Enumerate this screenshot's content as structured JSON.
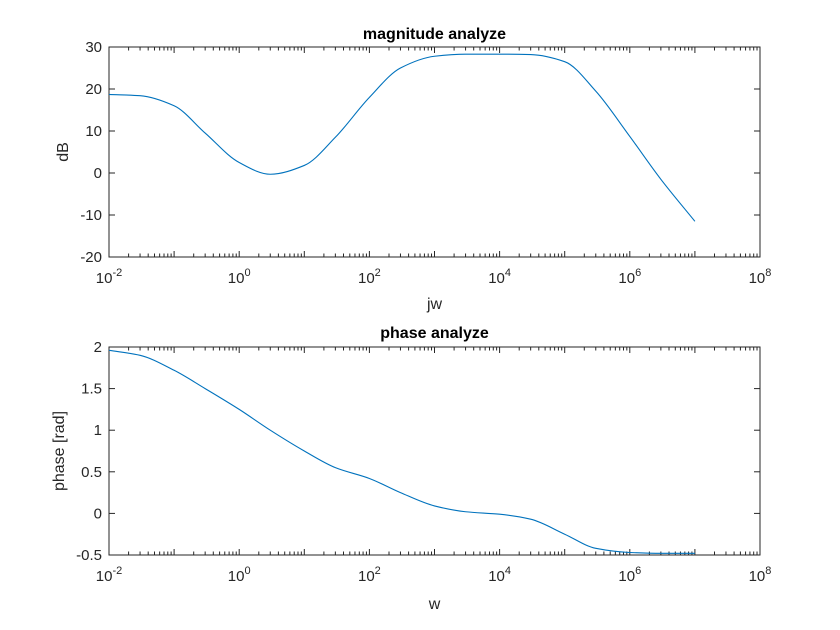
{
  "chart_data": [
    {
      "type": "line",
      "title": "magnitude analyze",
      "xlabel": "jw",
      "ylabel": "dB",
      "xscale": "log",
      "xlim": [
        0.01,
        100000000
      ],
      "ylim": [
        -20,
        30
      ],
      "x_ticks": [
        {
          "base": "10",
          "exp": "-2",
          "value": 0.01
        },
        {
          "base": "10",
          "exp": "0",
          "value": 1
        },
        {
          "base": "10",
          "exp": "2",
          "value": 100
        },
        {
          "base": "10",
          "exp": "4",
          "value": 10000
        },
        {
          "base": "10",
          "exp": "6",
          "value": 1000000
        },
        {
          "base": "10",
          "exp": "8",
          "value": 100000000
        }
      ],
      "y_ticks": [
        "-20",
        "-10",
        "0",
        "10",
        "20",
        "30"
      ],
      "grid": false,
      "line_color": "#0072BD",
      "series": [
        {
          "x": [
            0.01,
            0.03,
            0.1,
            0.3,
            1,
            3,
            10,
            30,
            100,
            300,
            1000,
            3000,
            10000,
            30000,
            100000,
            300000,
            1000000,
            3000000,
            10000000
          ],
          "y": [
            18.7,
            18.4,
            16.0,
            9.5,
            2.5,
            -0.3,
            1.8,
            8.5,
            18.0,
            25.0,
            27.8,
            28.3,
            28.3,
            28.2,
            26.5,
            19.5,
            8.7,
            -1.5,
            -11.5
          ]
        }
      ]
    },
    {
      "type": "line",
      "title": "phase analyze",
      "xlabel": "w",
      "ylabel": "phase [rad]",
      "xscale": "log",
      "xlim": [
        0.01,
        100000000
      ],
      "ylim": [
        -0.5,
        2
      ],
      "x_ticks": [
        {
          "base": "10",
          "exp": "-2",
          "value": 0.01
        },
        {
          "base": "10",
          "exp": "0",
          "value": 1
        },
        {
          "base": "10",
          "exp": "2",
          "value": 100
        },
        {
          "base": "10",
          "exp": "4",
          "value": 10000
        },
        {
          "base": "10",
          "exp": "6",
          "value": 1000000
        },
        {
          "base": "10",
          "exp": "8",
          "value": 100000000
        }
      ],
      "y_ticks": [
        "-0.5",
        "0",
        "0.5",
        "1",
        "1.5",
        "2"
      ],
      "grid": false,
      "line_color": "#0072BD",
      "series": [
        {
          "x": [
            0.01,
            0.03,
            0.1,
            0.3,
            1,
            3,
            10,
            30,
            100,
            300,
            1000,
            3000,
            10000,
            30000,
            100000,
            300000,
            1000000,
            3000000,
            10000000
          ],
          "y": [
            1.96,
            1.9,
            1.72,
            1.5,
            1.25,
            1.0,
            0.75,
            0.55,
            0.42,
            0.25,
            0.09,
            0.02,
            -0.01,
            -0.07,
            -0.25,
            -0.42,
            -0.47,
            -0.48,
            -0.48
          ]
        }
      ]
    }
  ]
}
